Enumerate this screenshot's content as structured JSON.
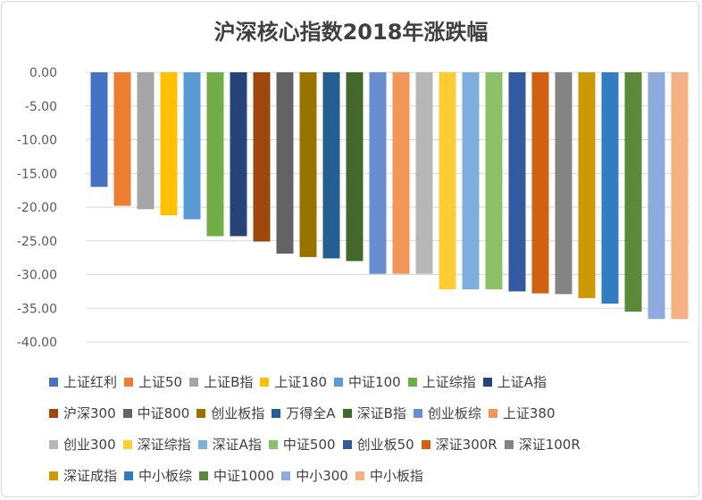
{
  "chart_data": {
    "type": "bar",
    "title": "沪深核心指数2018年涨跌幅",
    "xlabel": "",
    "ylabel": "",
    "ylim": [
      -40,
      0
    ],
    "yticks": [
      "0.00",
      "-5.00",
      "-10.00",
      "-15.00",
      "-20.00",
      "-25.00",
      "-30.00",
      "-35.00",
      "-40.00"
    ],
    "grid": true,
    "legend_position": "bottom",
    "series": [
      {
        "name": "上证红利",
        "value": -17.0,
        "color": "#4472C4"
      },
      {
        "name": "上证50",
        "value": -19.8,
        "color": "#ED7D31"
      },
      {
        "name": "上证B指",
        "value": -20.3,
        "color": "#A5A5A5"
      },
      {
        "name": "上证180",
        "value": -21.2,
        "color": "#FFC000"
      },
      {
        "name": "中证100",
        "value": -21.8,
        "color": "#5B9BD5"
      },
      {
        "name": "上证综指",
        "value": -24.3,
        "color": "#70AD47"
      },
      {
        "name": "上证A指",
        "value": -24.3,
        "color": "#264478"
      },
      {
        "name": "沪深300",
        "value": -25.1,
        "color": "#9E480E"
      },
      {
        "name": "中证800",
        "value": -26.9,
        "color": "#636363"
      },
      {
        "name": "创业板指",
        "value": -27.4,
        "color": "#997300"
      },
      {
        "name": "万得全A",
        "value": -27.6,
        "color": "#255E91"
      },
      {
        "name": "深证B指",
        "value": -28.0,
        "color": "#43682B"
      },
      {
        "name": "创业板综",
        "value": -29.9,
        "color": "#698ED0"
      },
      {
        "name": "上证380",
        "value": -29.9,
        "color": "#F1975A"
      },
      {
        "name": "创业300",
        "value": -29.9,
        "color": "#B7B7B7"
      },
      {
        "name": "深证综指",
        "value": -32.2,
        "color": "#FFCD33"
      },
      {
        "name": "深证A指",
        "value": -32.2,
        "color": "#7CAFDD"
      },
      {
        "name": "中证500",
        "value": -32.2,
        "color": "#8CC168"
      },
      {
        "name": "创业板50",
        "value": -32.5,
        "color": "#335AA1"
      },
      {
        "name": "深证300R",
        "value": -32.8,
        "color": "#D26012"
      },
      {
        "name": "深证100R",
        "value": -32.9,
        "color": "#848484"
      },
      {
        "name": "深证成指",
        "value": -33.5,
        "color": "#CC9A00"
      },
      {
        "name": "中小板综",
        "value": -34.3,
        "color": "#327DC2"
      },
      {
        "name": "中证1000",
        "value": -35.5,
        "color": "#5A8A39"
      },
      {
        "name": "中小300",
        "value": -36.6,
        "color": "#8FAADC"
      },
      {
        "name": "中小板指",
        "value": -36.6,
        "color": "#F4B183"
      }
    ],
    "legend_rows": [
      [
        0,
        1,
        2,
        3,
        4,
        5,
        6
      ],
      [
        7,
        8,
        9,
        10,
        11,
        12,
        13
      ],
      [
        14,
        15,
        16,
        17,
        18,
        19,
        20
      ],
      [
        21,
        22,
        23,
        24,
        25
      ]
    ]
  }
}
